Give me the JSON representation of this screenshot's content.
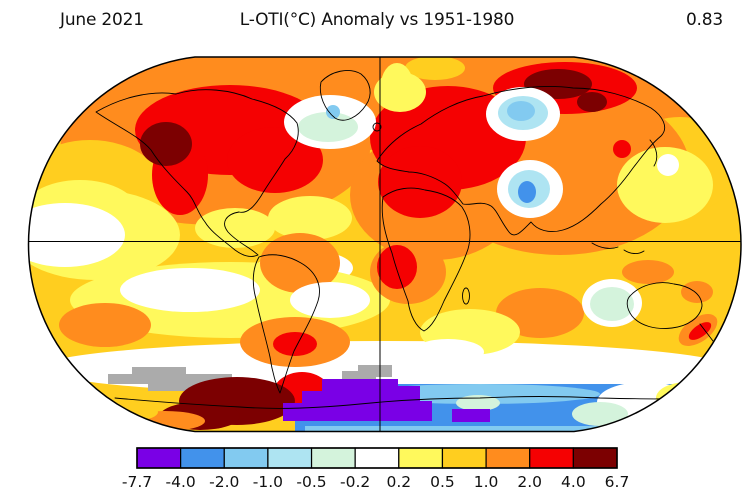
{
  "header": {
    "date_label": "June 2021",
    "title": "L-OTI(°C) Anomaly vs 1951-1980",
    "global_mean": "0.83"
  },
  "colorbar": {
    "tick_labels": [
      "-7.7",
      "-4.0",
      "-2.0",
      "-1.0",
      "-0.5",
      "-0.2",
      "0.2",
      "0.5",
      "1.0",
      "2.0",
      "4.0",
      "6.7"
    ],
    "segment_colors": [
      "#7A00E6",
      "#4292EB",
      "#82CAF0",
      "#AEE4F2",
      "#D4F3DC",
      "#FFFFFF",
      "#FFF95C",
      "#FFCE1F",
      "#FF8C1E",
      "#F50102",
      "#7C0001"
    ]
  },
  "palette": {
    "purple": "#7A00E6",
    "blue": "#4292EB",
    "light_blue": "#82CAF0",
    "pale_cyan": "#AEE4F2",
    "pale_mint": "#D4F3DC",
    "white": "#FFFFFF",
    "yellow": "#FFF95C",
    "gold": "#FFCE1F",
    "orange": "#FF8C1E",
    "red": "#F50102",
    "dark_red": "#7C0001",
    "no_data_gray": "#ABABAB"
  },
  "chart_data": {
    "type": "heatmap",
    "title": "L-OTI(°C) Anomaly vs 1951-1980",
    "period": "June 2021",
    "baseline_period": "1951-1980",
    "units": "°C",
    "global_mean_anomaly_c": 0.83,
    "projection": "Robinson world map",
    "legend_position": "bottom",
    "scale_boundaries_c": [
      -7.7,
      -4.0,
      -2.0,
      -1.0,
      -0.5,
      -0.2,
      0.2,
      0.5,
      1.0,
      2.0,
      4.0,
      6.7
    ],
    "scale_colors": [
      "#7A00E6",
      "#4292EB",
      "#82CAF0",
      "#AEE4F2",
      "#D4F3DC",
      "#FFFFFF",
      "#FFF95C",
      "#FFCE1F",
      "#FF8C1E",
      "#F50102",
      "#7C0001"
    ],
    "no_data_color": "#ABABAB",
    "grid_lines": [
      "equator",
      "prime meridian"
    ],
    "notable_regions": [
      {
        "region": "Western North America",
        "anomaly_c": "+4 to +6.7"
      },
      {
        "region": "Central and eastern Canada / NE United States",
        "anomaly_c": "+2 to +4"
      },
      {
        "region": "Europe and western Russia",
        "anomaly_c": "+2 to +4"
      },
      {
        "region": "Northern Siberia (Taymyr)",
        "anomaly_c": "+4 to +6.7"
      },
      {
        "region": "Middle East / North Africa",
        "anomaly_c": "+2 to +4"
      },
      {
        "region": "Central Asia (Kazakhstan)",
        "anomaly_c": "-0.5 to -2"
      },
      {
        "region": "Northern India / Himalaya",
        "anomaly_c": "-1 to -4"
      },
      {
        "region": "North Atlantic south of Greenland",
        "anomaly_c": "-0.2 to -1"
      },
      {
        "region": "Eastern tropical Pacific",
        "anomaly_c": "-0.2 to +0.2"
      },
      {
        "region": "Southwest Africa coast",
        "anomaly_c": "+2 to +4"
      },
      {
        "region": "Antarctic Peninsula / West Antarctica",
        "anomaly_c": "+4 to +6.7"
      },
      {
        "region": "East Antarctic coastal ocean",
        "anomaly_c": "-2 to -7.7"
      },
      {
        "region": "Southern Ocean band near 60S",
        "anomaly_c": "no data (gray)"
      }
    ]
  }
}
